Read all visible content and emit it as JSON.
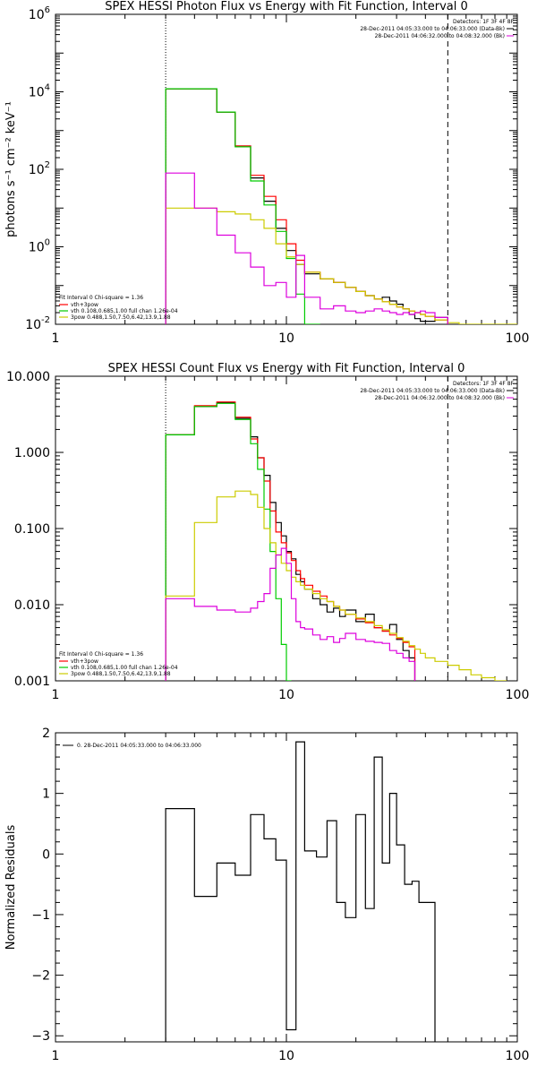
{
  "chart_data": [
    {
      "type": "line",
      "title": "SPEX HESSI Photon Flux vs Energy with Fit Function, Interval 0",
      "ylabel": "photons s⁻¹ cm⁻² keV⁻¹",
      "xlabel": "",
      "xscale": "log",
      "yscale": "log",
      "xlim": [
        1,
        100
      ],
      "ylim": [
        0.01,
        1000000
      ],
      "x_ticks": [
        "1",
        "10",
        "100"
      ],
      "y_ticks": [
        {
          "value": 0.01,
          "label": "10",
          "sup": "-2"
        },
        {
          "value": 1,
          "label": "10",
          "sup": "0"
        },
        {
          "value": 100,
          "label": "10",
          "sup": "2"
        },
        {
          "value": 10000,
          "label": "10",
          "sup": "4"
        },
        {
          "value": 1000000,
          "label": "10",
          "sup": "6"
        }
      ],
      "vlines": [
        {
          "x": 3,
          "style": "dotted"
        },
        {
          "x": 50,
          "style": "dashed"
        }
      ],
      "legend_top": [
        "Detectors: 1F 3F 4F 8F",
        "28-Dec-2011 04:05:33.000 to 04:06:33.000 (Data-Bk)",
        "28-Dec-2011 04:06:32.000 to 04:08:32.000 (Bk)"
      ],
      "legend_bottom_header": "Fit Interval  0    Chi-square = 1.36",
      "legend_bottom": [
        {
          "label": "vth+3pow",
          "color": "#ff0000"
        },
        {
          "label": "vth 0.108,0.685,1.00  full chan 1.26e-04",
          "color": "#00cc00"
        },
        {
          "label": "3pow 0.488,1.50,7.50,6.42,13.9,1.88",
          "color": "#cccc00"
        }
      ],
      "edges": [
        3,
        4,
        5,
        6,
        7,
        8,
        9,
        10,
        11,
        12,
        14,
        16,
        18,
        20,
        22,
        24,
        26,
        28,
        30,
        32,
        34,
        36,
        38,
        40,
        44,
        50,
        56,
        63,
        70,
        80,
        90,
        100
      ],
      "series": [
        {
          "color": "#000000",
          "values": [
            12000,
            12000,
            3000,
            400,
            60,
            15,
            3,
            0.8,
            0.35,
            0.2,
            0.15,
            0.12,
            0.09,
            0.07,
            0.055,
            0.045,
            0.05,
            0.04,
            0.033,
            0.025,
            0.018,
            0.014,
            0.012,
            0.012,
            0.015,
            null
          ]
        },
        {
          "color": "#ff0000",
          "values": [
            12000,
            12000,
            3000,
            400,
            70,
            20,
            5,
            1.2,
            0.45,
            0.22,
            0.15,
            0.12,
            0.09,
            0.07,
            0.055,
            0.045,
            0.038,
            0.033,
            0.028,
            0.025,
            0.022,
            0.02,
            0.018,
            0.016,
            0.013,
            null
          ]
        },
        {
          "color": "#00cc00",
          "values": [
            12000,
            12000,
            3000,
            380,
            50,
            12,
            2.5,
            0.5,
            0.06,
            0.01,
            null,
            null,
            null,
            null,
            null,
            null,
            null,
            null,
            null,
            null,
            null,
            null,
            null,
            null,
            null,
            null
          ]
        },
        {
          "color": "#cccc00",
          "values": [
            10,
            10,
            8,
            7,
            5,
            3,
            1.2,
            0.55,
            0.35,
            0.22,
            0.15,
            0.12,
            0.09,
            0.07,
            0.055,
            0.045,
            0.038,
            0.033,
            0.028,
            0.025,
            0.022,
            0.02,
            0.018,
            0.016,
            0.013,
            0.011,
            0.01,
            0.009,
            0.009,
            0.009,
            0.009
          ]
        },
        {
          "color": "#dd00dd",
          "values": [
            80,
            10,
            2,
            0.7,
            0.3,
            0.1,
            0.12,
            0.05,
            0.6,
            0.05,
            0.025,
            0.03,
            0.022,
            0.02,
            0.022,
            0.025,
            0.022,
            0.02,
            0.018,
            0.02,
            0.018,
            0.02,
            0.022,
            0.02,
            0.015,
            null
          ]
        }
      ]
    },
    {
      "type": "line",
      "title": "SPEX HESSI Count Flux vs Energy with Fit Function, Interval 0",
      "ylabel": "",
      "xlabel": "",
      "xscale": "log",
      "yscale": "log",
      "xlim": [
        1,
        100
      ],
      "ylim": [
        0.001,
        10
      ],
      "x_ticks": [
        "1",
        "10",
        "100"
      ],
      "y_ticks": [
        {
          "value": 0.001,
          "label": "0.001"
        },
        {
          "value": 0.01,
          "label": "0.010"
        },
        {
          "value": 0.1,
          "label": "0.100"
        },
        {
          "value": 1,
          "label": "1.000"
        },
        {
          "value": 10,
          "label": "10.000"
        }
      ],
      "vlines": [
        {
          "x": 3,
          "style": "dotted"
        },
        {
          "x": 50,
          "style": "dashed"
        }
      ],
      "legend_top": [
        "Detectors: 1F 3F 4F 8F",
        "28-Dec-2011 04:05:33.000 to 04:06:33.000 (Data-Bk)",
        "28-Dec-2011 04:06:32.000 to 04:08:32.000 (Bk)"
      ],
      "legend_bottom_header": "Fit Interval  0    Chi-square = 1.36",
      "legend_bottom": [
        {
          "label": "vth+3pow",
          "color": "#ff0000"
        },
        {
          "label": "vth 0.108,0.685,1.00  full chan 1.26e-04",
          "color": "#00cc00"
        },
        {
          "label": "3pow 0.488,1.50,7.50,6.42,13.9,1.88",
          "color": "#cccc00"
        }
      ],
      "edges": [
        3,
        4,
        5,
        6,
        7,
        7.5,
        8,
        8.5,
        9,
        9.5,
        10,
        10.5,
        11,
        11.5,
        12,
        13,
        14,
        15,
        16,
        17,
        18,
        20,
        22,
        24,
        26,
        28,
        30,
        32,
        34,
        36,
        38,
        40,
        44,
        50,
        56,
        63,
        70,
        80,
        90,
        100
      ],
      "series": [
        {
          "color": "#000000",
          "values": [
            1.7,
            4.0,
            4.5,
            2.8,
            1.6,
            0.85,
            0.5,
            0.22,
            0.12,
            0.08,
            0.05,
            0.04,
            0.025,
            0.02,
            0.016,
            0.012,
            0.01,
            0.008,
            0.009,
            0.007,
            0.0085,
            0.006,
            0.0075,
            0.005,
            0.0045,
            0.0055,
            0.0035,
            0.0025,
            0.002,
            null,
            null,
            null,
            null,
            null,
            null,
            null,
            null,
            null,
            null
          ]
        },
        {
          "color": "#ff0000",
          "values": [
            1.7,
            4.1,
            4.6,
            2.9,
            1.5,
            0.85,
            0.42,
            0.17,
            0.09,
            0.065,
            0.048,
            0.038,
            0.028,
            0.022,
            0.018,
            0.015,
            0.013,
            0.011,
            0.0095,
            0.0085,
            0.0075,
            0.0065,
            0.0058,
            0.005,
            0.0045,
            0.004,
            0.0036,
            0.0032,
            0.0028,
            null,
            null,
            null,
            null,
            null,
            null,
            null,
            null,
            null,
            null
          ]
        },
        {
          "color": "#00cc00",
          "values": [
            1.7,
            4.0,
            4.4,
            2.7,
            1.3,
            0.6,
            0.18,
            0.05,
            0.012,
            0.003,
            0.001,
            null,
            null,
            null,
            null,
            null,
            null,
            null,
            null,
            null,
            null,
            null,
            null,
            null,
            null,
            null,
            null,
            null,
            null,
            null,
            null,
            null,
            null,
            null,
            null,
            null,
            null,
            null,
            null
          ]
        },
        {
          "color": "#cccc00",
          "values": [
            0.013,
            0.12,
            0.26,
            0.31,
            0.28,
            0.19,
            0.1,
            0.065,
            0.045,
            0.035,
            0.028,
            0.023,
            0.02,
            0.018,
            0.016,
            0.014,
            0.012,
            0.011,
            0.0095,
            0.0085,
            0.0075,
            0.0067,
            0.006,
            0.0053,
            0.0047,
            0.0042,
            0.0037,
            0.0033,
            0.0029,
            0.0026,
            0.0023,
            0.002,
            0.0018,
            0.0016,
            0.0014,
            0.0012,
            0.0011,
            0.001,
            null
          ]
        },
        {
          "color": "#dd00dd",
          "values": [
            0.012,
            0.0095,
            0.0085,
            0.008,
            0.009,
            0.011,
            0.014,
            0.03,
            0.045,
            0.055,
            0.035,
            0.012,
            0.006,
            0.005,
            0.0048,
            0.004,
            0.0035,
            0.0038,
            0.0032,
            0.0036,
            0.0042,
            0.0035,
            0.0033,
            0.0032,
            0.0031,
            0.0025,
            0.0023,
            0.002,
            0.0018,
            null,
            null,
            null,
            null,
            null,
            null,
            null,
            null,
            null,
            null
          ]
        }
      ]
    },
    {
      "type": "line",
      "title": "",
      "ylabel": "Normalized Residuals",
      "xlabel": "",
      "xscale": "log",
      "yscale": "linear",
      "xlim": [
        1,
        100
      ],
      "ylim": [
        -3.1,
        2.0
      ],
      "x_ticks": [
        "1",
        "10",
        "100"
      ],
      "y_ticks": [
        {
          "value": -3,
          "label": "−3"
        },
        {
          "value": -2,
          "label": "−2"
        },
        {
          "value": -1,
          "label": "−1"
        },
        {
          "value": 0,
          "label": "0"
        },
        {
          "value": 1,
          "label": "1"
        },
        {
          "value": 2,
          "label": "2"
        }
      ],
      "legend_top_left": "0. 28-Dec-2011 04:05:33.000 to 04:06:33.000",
      "edges": [
        3,
        4,
        5,
        6,
        7,
        8,
        9,
        10,
        11,
        12,
        13.5,
        15,
        16.5,
        18,
        20,
        22,
        24,
        26,
        28,
        30,
        32.5,
        35,
        37.5,
        40,
        44,
        50
      ],
      "series": [
        {
          "color": "#000000",
          "values": [
            0.75,
            -0.7,
            -0.15,
            -0.35,
            0.65,
            0.25,
            -0.1,
            -2.9,
            1.85,
            0.05,
            -0.05,
            0.55,
            -0.8,
            -1.05,
            0.65,
            -0.9,
            1.6,
            -0.15,
            1.0,
            0.15,
            -0.5,
            -0.45,
            -0.8,
            -0.8,
            null
          ]
        }
      ]
    }
  ]
}
